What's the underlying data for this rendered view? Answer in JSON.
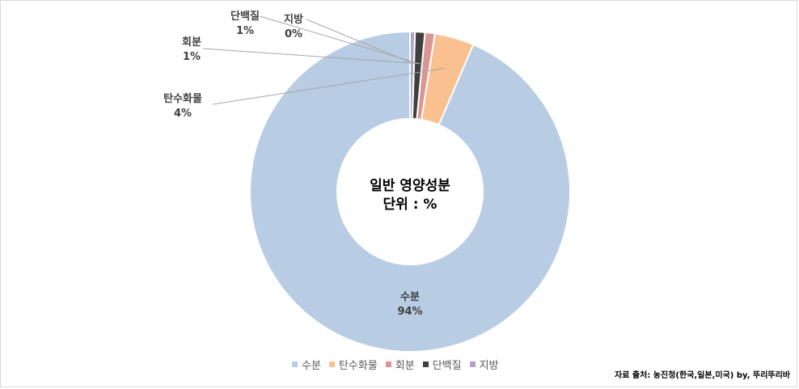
{
  "chart_data": {
    "type": "pie",
    "title": "",
    "center_text": [
      "일반 영양성분",
      "단위 : %"
    ],
    "categories": [
      "수분",
      "탄수화물",
      "회분",
      "단백질",
      "지방"
    ],
    "values": [
      94,
      4,
      1,
      1,
      0
    ],
    "data_labels": [
      "94%",
      "4%",
      "1%",
      "1%",
      "0%"
    ],
    "colors": [
      "#b8cce4",
      "#fac090",
      "#d99694",
      "#404040",
      "#b3a2c7"
    ],
    "donut": true,
    "legend_position": "bottom"
  },
  "source_text": "자료 출처: 농진청(한국,일본,미국) by, 뚜리뚜리바"
}
